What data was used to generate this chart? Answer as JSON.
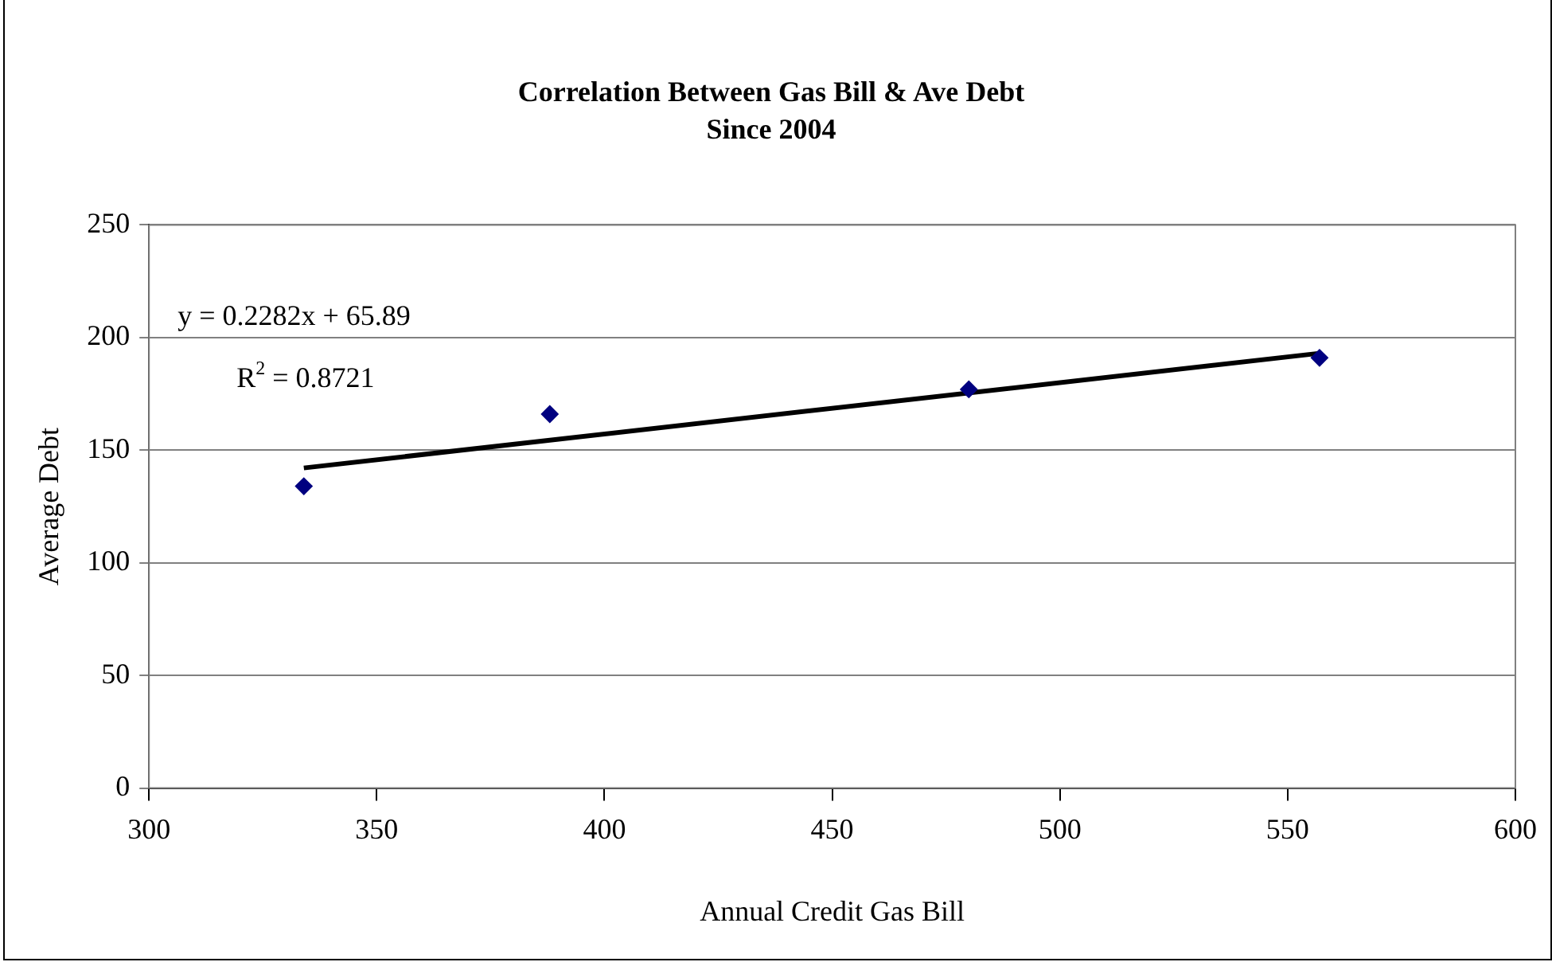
{
  "chart_data": {
    "type": "scatter",
    "title": "Correlation Between Gas Bill & Ave Debt",
    "subtitle": "Since 2004",
    "xlabel": "Annual Credit Gas Bill",
    "ylabel": "Average Debt",
    "annotations": [
      "y = 0.2282x + 65.89",
      "R$^{2}$ = 0.8721"
    ],
    "series": [
      {
        "type": "scatter",
        "color": "#000080",
        "marker": "diamond",
        "x": [
          334,
          388,
          480,
          557
        ],
        "values": [
          134,
          166,
          177,
          191
        ]
      },
      {
        "type": "line",
        "color": "#000000",
        "x": [
          334,
          557
        ],
        "values": [
          142.1,
          193.0
        ]
      }
    ],
    "xlim": [
      300,
      600
    ],
    "xticks": [
      300,
      350,
      400,
      450,
      500,
      550,
      600
    ],
    "ylim": [
      0,
      250
    ],
    "yticks": [
      0,
      50,
      100,
      150,
      200,
      250
    ],
    "grid": "y",
    "legend": false
  }
}
